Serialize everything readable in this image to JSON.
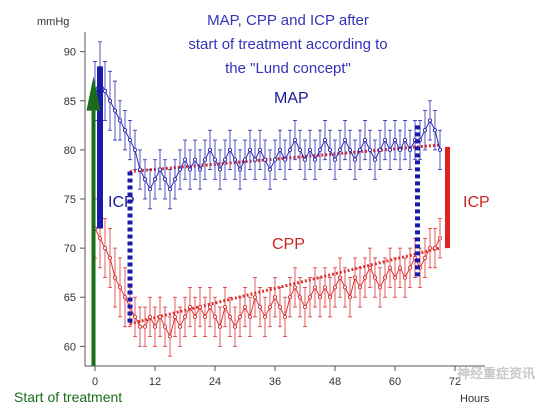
{
  "chart_data": {
    "type": "line",
    "title_lines": [
      "MAP, CPP and ICP after",
      "start of treatment according to",
      "the \"Lund concept\""
    ],
    "y_unit": "mmHg",
    "x_unit": "Hours",
    "xlim": [
      -2,
      78
    ],
    "ylim": [
      58,
      92
    ],
    "x_ticks": [
      0,
      12,
      24,
      36,
      48,
      60,
      72
    ],
    "y_ticks": [
      60,
      65,
      70,
      75,
      80,
      85,
      90
    ],
    "series": [
      {
        "name": "MAP",
        "color": "#2a2ab0",
        "x": [
          0,
          1,
          2,
          3,
          4,
          5,
          6,
          7,
          8,
          9,
          10,
          11,
          12,
          13,
          14,
          15,
          16,
          17,
          18,
          19,
          20,
          21,
          22,
          23,
          24,
          25,
          26,
          27,
          28,
          29,
          30,
          31,
          32,
          33,
          34,
          35,
          36,
          37,
          38,
          39,
          40,
          41,
          42,
          43,
          44,
          45,
          46,
          47,
          48,
          49,
          50,
          51,
          52,
          53,
          54,
          55,
          56,
          57,
          58,
          59,
          60,
          61,
          62,
          63,
          64,
          65,
          66,
          67,
          68,
          69
        ],
        "y": [
          86,
          87,
          86,
          85,
          84,
          83,
          82,
          81,
          80,
          78,
          77,
          76,
          77,
          78,
          77,
          76,
          77,
          78,
          79,
          78,
          79,
          78,
          79,
          80,
          79,
          78,
          79,
          80,
          79,
          78,
          79,
          80,
          79,
          80,
          79,
          78,
          79,
          80,
          79,
          80,
          81,
          80,
          79,
          80,
          79,
          80,
          81,
          80,
          79,
          80,
          81,
          80,
          79,
          80,
          81,
          80,
          79,
          80,
          81,
          80,
          81,
          80,
          81,
          80,
          81,
          81,
          82,
          83,
          82,
          80
        ],
        "err": [
          3,
          4,
          3,
          3,
          3,
          2,
          2,
          2,
          2,
          2,
          2,
          2,
          2,
          2,
          2,
          2,
          2,
          2,
          2,
          2,
          2,
          2,
          2,
          2,
          2,
          2,
          2,
          2,
          2,
          2,
          2,
          2,
          2,
          2,
          2,
          2,
          2,
          2,
          2,
          2,
          2,
          2,
          2,
          2,
          2,
          2,
          2,
          2,
          2,
          2,
          2,
          2,
          2,
          2,
          2,
          2,
          2,
          2,
          2,
          2,
          2,
          2,
          2,
          2,
          2,
          2,
          2,
          2,
          2,
          2
        ]
      },
      {
        "name": "CPP",
        "color": "#dd3333",
        "x": [
          0,
          1,
          2,
          3,
          4,
          5,
          6,
          7,
          8,
          9,
          10,
          11,
          12,
          13,
          14,
          15,
          16,
          17,
          18,
          19,
          20,
          21,
          22,
          23,
          24,
          25,
          26,
          27,
          28,
          29,
          30,
          31,
          32,
          33,
          34,
          35,
          36,
          37,
          38,
          39,
          40,
          41,
          42,
          43,
          44,
          45,
          46,
          47,
          48,
          49,
          50,
          51,
          52,
          53,
          54,
          55,
          56,
          57,
          58,
          59,
          60,
          61,
          62,
          63,
          64,
          65,
          66,
          67,
          68,
          69
        ],
        "y": [
          72,
          71,
          70,
          69,
          67,
          66,
          65,
          64,
          63,
          62,
          62,
          63,
          62,
          63,
          62,
          61,
          63,
          62,
          63,
          64,
          63,
          64,
          63,
          64,
          63,
          62,
          64,
          63,
          62,
          63,
          64,
          63,
          65,
          64,
          63,
          64,
          65,
          64,
          63,
          65,
          66,
          65,
          64,
          65,
          66,
          65,
          66,
          65,
          66,
          67,
          66,
          65,
          67,
          66,
          67,
          68,
          67,
          66,
          67,
          68,
          67,
          68,
          67,
          68,
          69,
          68,
          69,
          70,
          70,
          71
        ],
        "err": [
          3,
          3,
          3,
          3,
          3,
          3,
          3,
          2,
          2,
          2,
          2,
          2,
          2,
          2,
          2,
          2,
          2,
          2,
          2,
          2,
          2,
          2,
          2,
          2,
          2,
          2,
          2,
          2,
          2,
          2,
          2,
          2,
          2,
          2,
          2,
          2,
          2,
          2,
          2,
          2,
          2,
          2,
          2,
          2,
          2,
          2,
          2,
          2,
          2,
          2,
          2,
          2,
          2,
          2,
          2,
          2,
          2,
          2,
          2,
          2,
          2,
          2,
          2,
          2,
          2,
          2,
          2,
          2,
          2,
          2
        ]
      }
    ],
    "trend_lines": [
      {
        "name": "MAP",
        "x": [
          7,
          69
        ],
        "y": [
          77.8,
          80.5
        ],
        "color": "#dd3333"
      },
      {
        "name": "CPP",
        "x": [
          7,
          69
        ],
        "y": [
          62.3,
          70
        ],
        "color": "#dd3333"
      }
    ],
    "icp_markers": [
      {
        "label": "ICP",
        "x": 7,
        "y_top": 77.8,
        "y_bottom": 62.3,
        "style": "dotted",
        "color": "#1a1aaa"
      },
      {
        "label": "",
        "x": 64.5,
        "y_top": 82.5,
        "y_bottom": 67,
        "style": "dotted",
        "color": "#1a1aaa"
      },
      {
        "label": "ICP",
        "x": 70.5,
        "y_top": 80.3,
        "y_bottom": 70,
        "style": "solid",
        "color": "#dd2222"
      }
    ],
    "start_bar": {
      "x": 1,
      "y_top": 88.5,
      "y_bottom": 72,
      "color": "#1a1aaa"
    },
    "start_arrow": {
      "label": "Start of treatment",
      "x": -0.3,
      "color": "#1a6b1a"
    }
  },
  "watermark": "神经重症资讯"
}
